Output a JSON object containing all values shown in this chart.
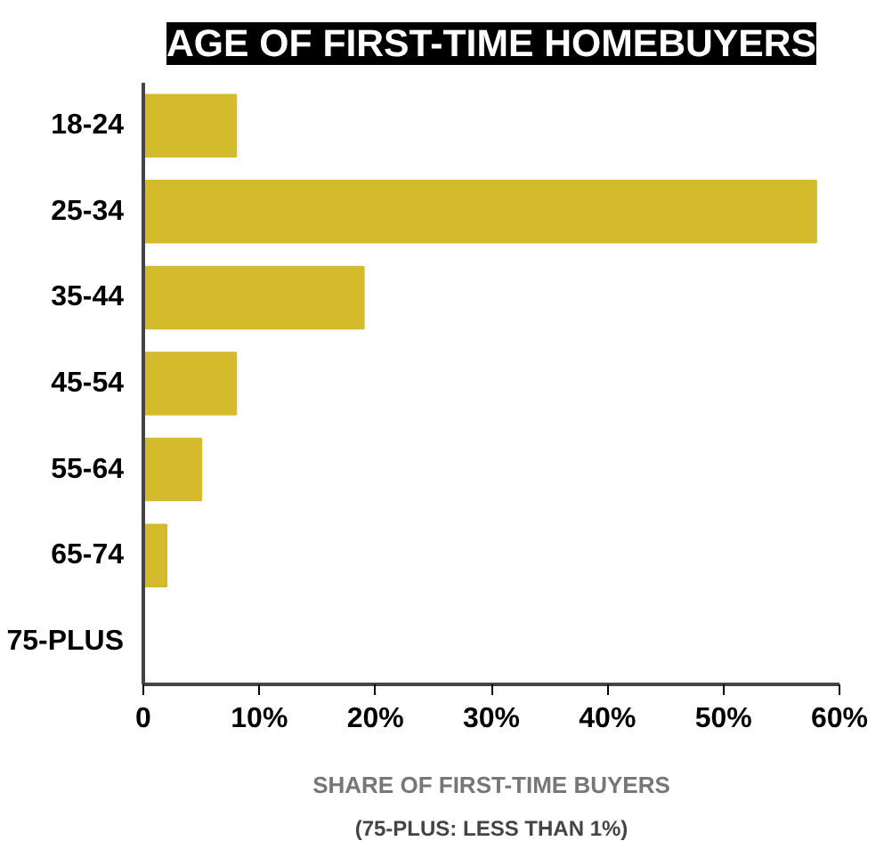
{
  "chart_data": {
    "type": "bar",
    "orientation": "horizontal",
    "title": "AGE OF FIRST-TIME HOMEBUYERS",
    "xlabel": "SHARE OF FIRST-TIME BUYERS",
    "categories": [
      "18-24",
      "25-34",
      "35-44",
      "45-54",
      "55-64",
      "65-74",
      "75-PLUS"
    ],
    "values": [
      8,
      58,
      19,
      8,
      5,
      2,
      0
    ],
    "color": "#d4bb2c",
    "xlim": [
      0,
      60
    ],
    "xticks": [
      0,
      {
        "value": 10,
        "label": "10%"
      },
      {
        "value": 20,
        "label": "20%"
      },
      {
        "value": 30,
        "label": "30%"
      },
      {
        "value": 40,
        "label": "40%"
      },
      {
        "value": 50,
        "label": "50%"
      },
      {
        "value": 60,
        "label": "60%"
      }
    ],
    "grid": false,
    "annotations": [
      "(75-PLUS: LESS THAN 1%)"
    ]
  }
}
